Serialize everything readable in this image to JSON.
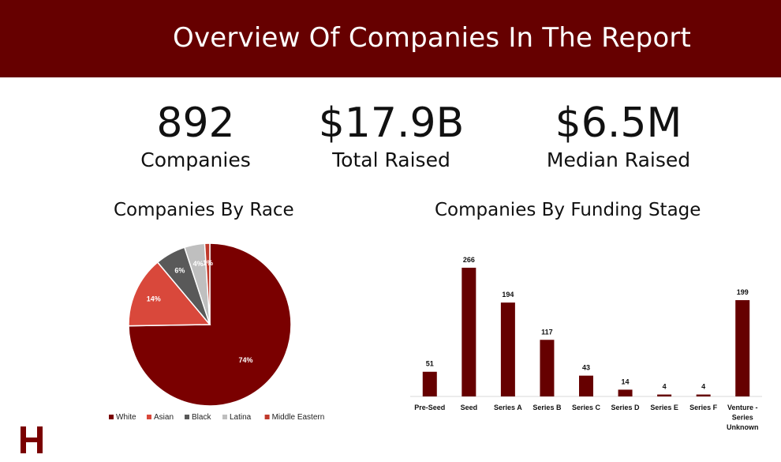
{
  "header": {
    "title": "Overview Of Companies In The Report"
  },
  "stats": [
    {
      "value": "892",
      "label": "Companies"
    },
    {
      "value": "$17.9B",
      "label": "Total Raised"
    },
    {
      "value": "$6.5M",
      "label": "Median Raised"
    }
  ],
  "colors": {
    "banner": "#660000",
    "bar": "#660000"
  },
  "chart_data": [
    {
      "type": "pie",
      "title": "Companies By Race",
      "labels": [
        "White",
        "Asian",
        "Black",
        "Latina",
        "Middle Eastern"
      ],
      "values": [
        74,
        14,
        6,
        4,
        1
      ],
      "data_labels": [
        "74%",
        "14%",
        "6%",
        "4%",
        "1%"
      ],
      "colors": [
        "#7a0000",
        "#d9483b",
        "#595959",
        "#bfbfbf",
        "#c0392b"
      ],
      "legend": "bottom"
    },
    {
      "type": "bar",
      "title": "Companies By Funding Stage",
      "categories": [
        "Pre-Seed",
        "Seed",
        "Series A",
        "Series B",
        "Series C",
        "Series D",
        "Series E",
        "Series F",
        "Venture - Series Unknown"
      ],
      "values": [
        51,
        266,
        194,
        117,
        43,
        14,
        4,
        4,
        199
      ],
      "grid": false
    }
  ],
  "logo": {
    "text": "H"
  }
}
